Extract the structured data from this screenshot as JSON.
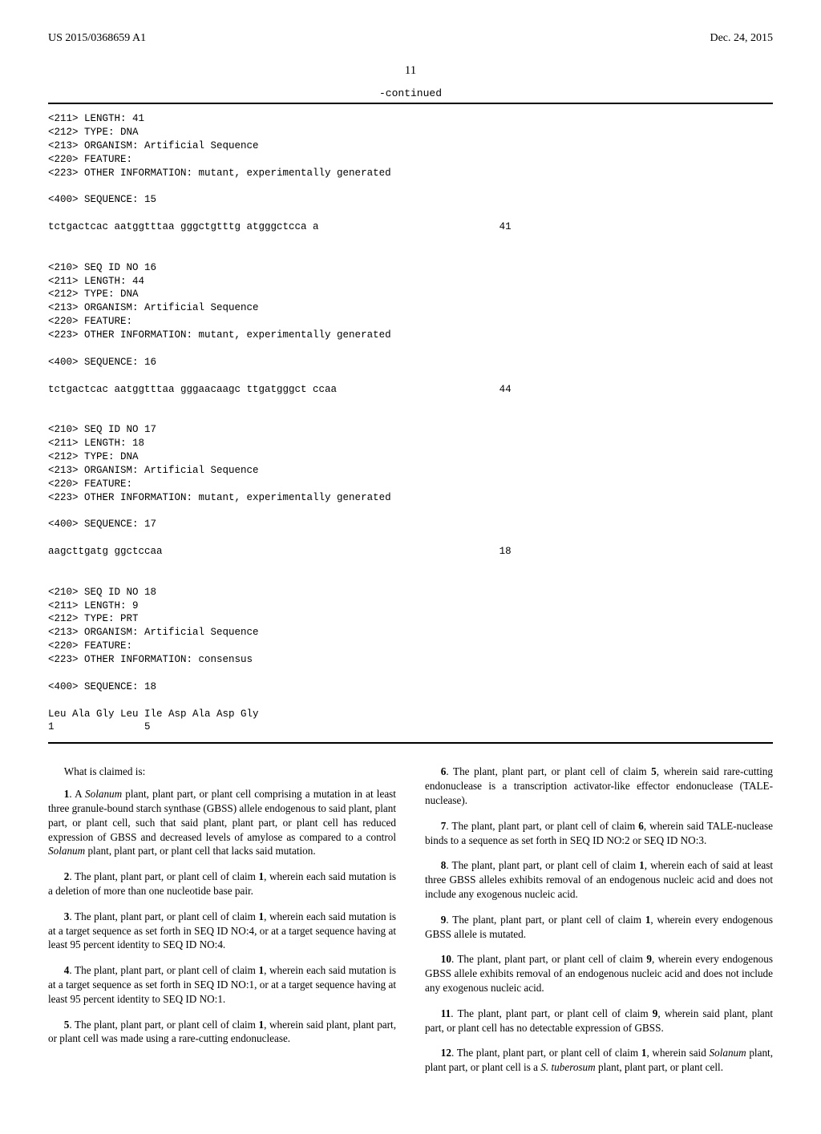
{
  "header": {
    "pub_no": "US 2015/0368659 A1",
    "pub_date": "Dec. 24, 2015"
  },
  "page_number": "11",
  "continued_label": "-continued",
  "sequence_listing": "<211> LENGTH: 41\n<212> TYPE: DNA\n<213> ORGANISM: Artificial Sequence\n<220> FEATURE:\n<223> OTHER INFORMATION: mutant, experimentally generated\n\n<400> SEQUENCE: 15\n\ntctgactcac aatggtttaa gggctgtttg atgggctcca a                              41\n\n\n<210> SEQ ID NO 16\n<211> LENGTH: 44\n<212> TYPE: DNA\n<213> ORGANISM: Artificial Sequence\n<220> FEATURE:\n<223> OTHER INFORMATION: mutant, experimentally generated\n\n<400> SEQUENCE: 16\n\ntctgactcac aatggtttaa gggaacaagc ttgatgggct ccaa                           44\n\n\n<210> SEQ ID NO 17\n<211> LENGTH: 18\n<212> TYPE: DNA\n<213> ORGANISM: Artificial Sequence\n<220> FEATURE:\n<223> OTHER INFORMATION: mutant, experimentally generated\n\n<400> SEQUENCE: 17\n\naagcttgatg ggctccaa                                                        18\n\n\n<210> SEQ ID NO 18\n<211> LENGTH: 9\n<212> TYPE: PRT\n<213> ORGANISM: Artificial Sequence\n<220> FEATURE:\n<223> OTHER INFORMATION: consensus\n\n<400> SEQUENCE: 18\n\nLeu Ala Gly Leu Ile Asp Ala Asp Gly\n1               5",
  "claims": {
    "intro": "What is claimed is:",
    "c1_num": "1",
    "c1_text_a": ". A ",
    "c1_italic": "Solanum",
    "c1_text_b": " plant, plant part, or plant cell comprising a mutation in at least three granule-bound starch synthase (GBSS) allele endogenous to said plant, plant part, or plant cell, such that said plant, plant part, or plant cell has reduced expression of GBSS and decreased levels of amylose as compared to a control ",
    "c1_italic2": "Solanum",
    "c1_text_c": " plant, plant part, or plant cell that lacks said mutation.",
    "c2_num": "2",
    "c2_text_a": ". The plant, plant part, or plant cell of claim ",
    "c2_ref": "1",
    "c2_text_b": ", wherein each said mutation is a deletion of more than one nucleotide base pair.",
    "c3_num": "3",
    "c3_text_a": ". The plant, plant part, or plant cell of claim ",
    "c3_ref": "1",
    "c3_text_b": ", wherein each said mutation is at a target sequence as set forth in SEQ ID NO:4, or at a target sequence having at least 95 percent identity to SEQ ID NO:4.",
    "c4_num": "4",
    "c4_text_a": ". The plant, plant part, or plant cell of claim ",
    "c4_ref": "1",
    "c4_text_b": ", wherein each said mutation is at a target sequence as set forth in SEQ ID NO:1, or at a target sequence having at least 95 percent identity to SEQ ID NO:1.",
    "c5_num": "5",
    "c5_text_a": ". The plant, plant part, or plant cell of claim ",
    "c5_ref": "1",
    "c5_text_b": ", wherein said plant, plant part, or plant cell was made using a rare-cutting endonuclease.",
    "c6_num": "6",
    "c6_text_a": ". The plant, plant part, or plant cell of claim ",
    "c6_ref": "5",
    "c6_text_b": ", wherein said rare-cutting endonuclease is a transcription activator-like effector endonuclease (TALE-nuclease).",
    "c7_num": "7",
    "c7_text_a": ". The plant, plant part, or plant cell of claim ",
    "c7_ref": "6",
    "c7_text_b": ", wherein said TALE-nuclease binds to a sequence as set forth in SEQ ID NO:2 or SEQ ID NO:3.",
    "c8_num": "8",
    "c8_text_a": ". The plant, plant part, or plant cell of claim ",
    "c8_ref": "1",
    "c8_text_b": ", wherein each of said at least three GBSS alleles exhibits removal of an endogenous nucleic acid and does not include any exogenous nucleic acid.",
    "c9_num": "9",
    "c9_text_a": ". The plant, plant part, or plant cell of claim ",
    "c9_ref": "1",
    "c9_text_b": ", wherein every endogenous GBSS allele is mutated.",
    "c10_num": "10",
    "c10_text_a": ". The plant, plant part, or plant cell of claim ",
    "c10_ref": "9",
    "c10_text_b": ", wherein every endogenous GBSS allele exhibits removal of an endogenous nucleic acid and does not include any exogenous nucleic acid.",
    "c11_num": "11",
    "c11_text_a": ". The plant, plant part, or plant cell of claim ",
    "c11_ref": "9",
    "c11_text_b": ", wherein said plant, plant part, or plant cell has no detectable expression of GBSS.",
    "c12_num": "12",
    "c12_text_a": ". The plant, plant part, or plant cell of claim ",
    "c12_ref": "1",
    "c12_text_b": ", wherein said ",
    "c12_italic1": "Solanum",
    "c12_text_c": " plant, plant part, or plant cell is a ",
    "c12_italic2": "S. tuberosum",
    "c12_text_d": " plant, plant part, or plant cell."
  }
}
